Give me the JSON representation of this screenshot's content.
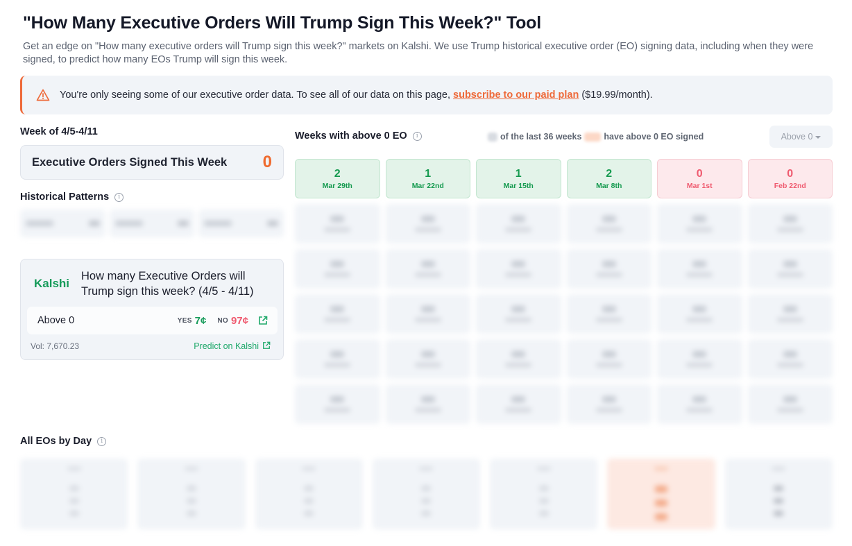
{
  "header": {
    "title": "\"How Many Executive Orders Will Trump Sign This Week?\" Tool",
    "subtitle": "Get an edge on \"How many executive orders will Trump sign this week?\" markets on Kalshi. We use Trump historical executive order (EO) signing data, including when they were signed, to predict how many EOs Trump will sign this week."
  },
  "alert": {
    "icon": "warning-triangle-icon",
    "text_before": "You're only seeing some of our executive order data. To see all of our data on this page, ",
    "link_text": "subscribe to our paid plan",
    "text_after": " ($19.99/month).",
    "accent_color": "#ee6a3a"
  },
  "current_week": {
    "label": "Week of 4/5-4/11",
    "card_label": "Executive Orders Signed This Week",
    "card_value": "0"
  },
  "historical_patterns": {
    "title": "Historical Patterns",
    "cells": 3
  },
  "kalshi": {
    "logo": "Kalshi",
    "question": "How many Executive Orders will Trump sign this week? (4/5 - 4/11)",
    "market": {
      "name": "Above 0",
      "yes_label": "YES",
      "yes_price": "7¢",
      "no_label": "NO",
      "no_price": "97¢"
    },
    "volume": "Vol: 7,670.23",
    "predict_link": "Predict on Kalshi",
    "colors": {
      "yes": "#169b5a",
      "no": "#ef5a6f"
    }
  },
  "weeks": {
    "title": "Weeks with above 0 EO",
    "summary_middle": "of the last 36 weeks",
    "summary_end": "have above 0 EO signed",
    "dropdown": "Above 0",
    "tiles": [
      {
        "count": "2",
        "date": "Mar 29th",
        "status": "pos"
      },
      {
        "count": "1",
        "date": "Mar 22nd",
        "status": "pos"
      },
      {
        "count": "1",
        "date": "Mar 15th",
        "status": "pos"
      },
      {
        "count": "2",
        "date": "Mar 8th",
        "status": "pos"
      },
      {
        "count": "0",
        "date": "Mar 1st",
        "status": "zero"
      },
      {
        "count": "0",
        "date": "Feb 22nd",
        "status": "zero"
      }
    ]
  },
  "all_eos_by_day": {
    "title": "All EOs by Day"
  }
}
